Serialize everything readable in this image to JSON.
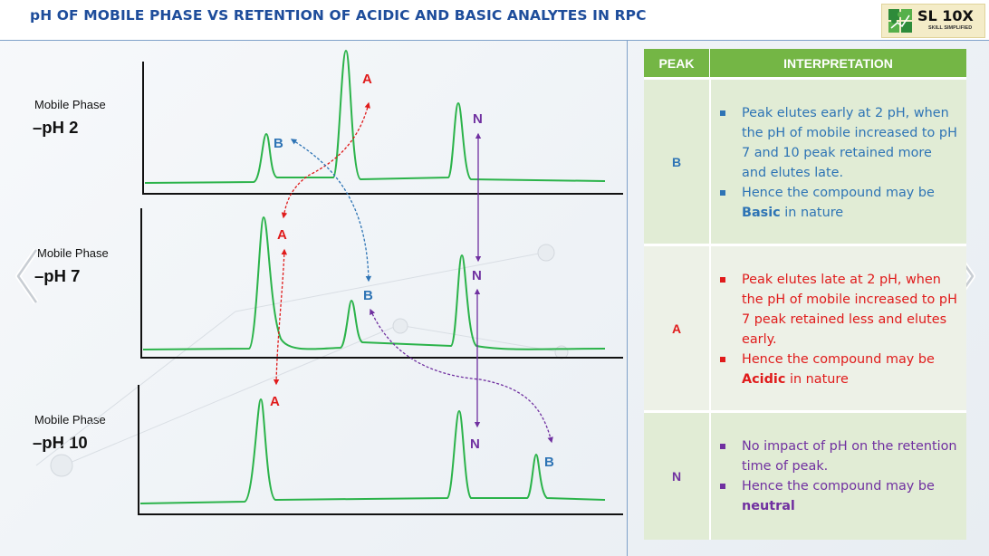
{
  "title": "pH OF MOBILE PHASE VS RETENTION OF ACIDIC AND BASIC ANALYTES IN RPC",
  "logo": {
    "text": "SL 10X",
    "tagline": "SKILL SIMPLIFIED"
  },
  "phases": [
    {
      "label": "Mobile Phase",
      "value": "–pH 2"
    },
    {
      "label": "Mobile Phase",
      "value": "–pH 7"
    },
    {
      "label": "Mobile Phase",
      "value": "–pH 10"
    }
  ],
  "peak_labels": {
    "A": "A",
    "B": "B",
    "N": "N"
  },
  "colors": {
    "trace": "#2bb34a",
    "acidic": "#e01b1b",
    "basic": "#2e74b5",
    "neutral": "#7030a0",
    "header_green": "#74b645",
    "title_blue": "#1e4d9b"
  },
  "table": {
    "headers": {
      "peak": "PEAK",
      "interpretation": "INTERPRETATION"
    },
    "rows": [
      {
        "peak": "B",
        "bullets": [
          {
            "text": "Peak elutes early at 2 pH, when the pH of mobile increased to pH 7 and 10 peak retained more and elutes late.",
            "bold": "",
            "after": ""
          },
          {
            "text": "Hence the compound may be ",
            "bold": "Basic",
            "after": " in nature"
          }
        ]
      },
      {
        "peak": "A",
        "bullets": [
          {
            "text": "Peak elutes late at 2 pH, when the pH of mobile increased to pH 7 peak retained less and elutes early.",
            "bold": "",
            "after": ""
          },
          {
            "text": "Hence the compound may be ",
            "bold": "Acidic",
            "after": " in nature"
          }
        ]
      },
      {
        "peak": "N",
        "bullets": [
          {
            "text": "No impact of pH on the retention time of peak.",
            "bold": "",
            "after": ""
          },
          {
            "text": "Hence the compound may be ",
            "bold": "neutral",
            "after": ""
          }
        ]
      }
    ]
  },
  "icons": {
    "prev": "chevron-left-icon",
    "next": "chevron-right-icon",
    "logo": "puzzle-logo-icon"
  }
}
